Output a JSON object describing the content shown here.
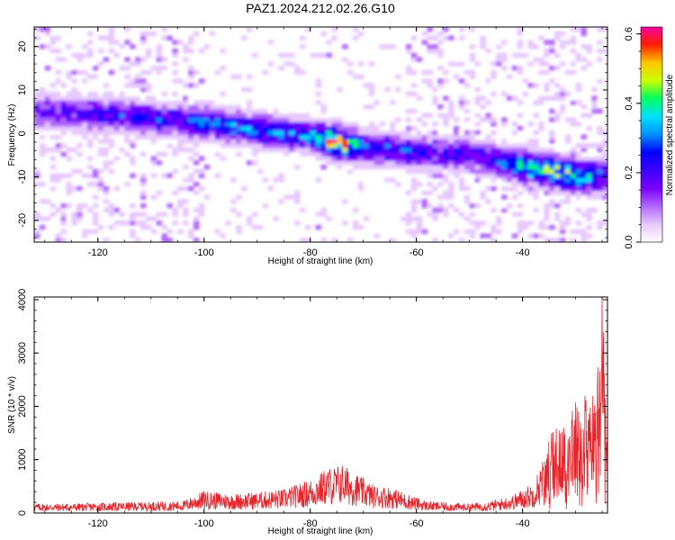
{
  "title": "PAZ1.2024.212.02.26.G10",
  "colors": {
    "snr_line": "#e8242b",
    "colormap": [
      "#ffffff",
      "#e6c8ff",
      "#b066ff",
      "#7a00ff",
      "#3d00ff",
      "#0000ff",
      "#0090ff",
      "#00e0ff",
      "#00ff60",
      "#c8ff00",
      "#ffc800",
      "#ff2000",
      "#ff00a0"
    ]
  },
  "chart_data": [
    {
      "type": "heatmap",
      "xlabel": "Height of straight line (km)",
      "ylabel": "Frequency (Hz)",
      "xlim": [
        -132,
        -24
      ],
      "ylim": [
        -25,
        24.5
      ],
      "xticks": [
        -120,
        -100,
        -80,
        -60,
        -40
      ],
      "xtick_labels": [
        "-120",
        "-100",
        "-80",
        "-60",
        "-40"
      ],
      "yticks": [
        -20,
        -10,
        0,
        10,
        20
      ],
      "ytick_labels": [
        "-20",
        "-10",
        "0",
        "10",
        "20"
      ],
      "colorbar": {
        "label": "Normalized spectral amplitude",
        "range": [
          0,
          0.62
        ],
        "ticks": [
          0.0,
          0.2,
          0.4,
          0.6
        ],
        "tick_labels": [
          "0.0",
          "0.2",
          "0.4",
          "0.6"
        ]
      },
      "ridge": {
        "x": [
          -128,
          -120,
          -110,
          -100,
          -90,
          -80,
          -75,
          -70,
          -65,
          -60,
          -55,
          -50,
          -45,
          -40,
          -35,
          -30,
          -25
        ],
        "frequency": [
          5,
          4.5,
          3.5,
          2.5,
          1,
          -0.5,
          -2,
          -3,
          -3.5,
          -4,
          -4.5,
          -5,
          -6,
          -7.5,
          -8.5,
          -9.5,
          -10
        ],
        "amplitude": [
          0.2,
          0.25,
          0.26,
          0.3,
          0.33,
          0.32,
          0.62,
          0.3,
          0.28,
          0.26,
          0.24,
          0.24,
          0.26,
          0.42,
          0.5,
          0.45,
          0.3
        ]
      }
    },
    {
      "type": "line",
      "xlabel": "Height of straight line (km)",
      "ylabel": "SNR (10 * v/v)",
      "xlim": [
        -132,
        -24
      ],
      "ylim": [
        0,
        4050
      ],
      "xticks": [
        -120,
        -100,
        -80,
        -60,
        -40
      ],
      "xtick_labels": [
        "-120",
        "-100",
        "-80",
        "-60",
        "-40"
      ],
      "yticks": [
        0,
        1000,
        2000,
        3000,
        4000
      ],
      "ytick_labels": [
        "0",
        "1000",
        "2000",
        "3000",
        "4000"
      ],
      "series": [
        {
          "x": [
            -132,
            -125,
            -118,
            -111,
            -104,
            -100,
            -95,
            -90,
            -85,
            -80,
            -77,
            -74,
            -71,
            -68,
            -65,
            -62,
            -58,
            -54,
            -50,
            -46,
            -42,
            -40,
            -38,
            -36,
            -34,
            -32,
            -30,
            -28,
            -26,
            -25,
            -24.5,
            -24
          ],
          "y": [
            120,
            120,
            130,
            140,
            150,
            280,
            240,
            260,
            300,
            420,
            560,
            620,
            480,
            350,
            330,
            250,
            150,
            130,
            120,
            150,
            220,
            300,
            380,
            700,
            1000,
            1150,
            1350,
            1500,
            1650,
            3000,
            2000,
            1200
          ]
        }
      ]
    }
  ]
}
